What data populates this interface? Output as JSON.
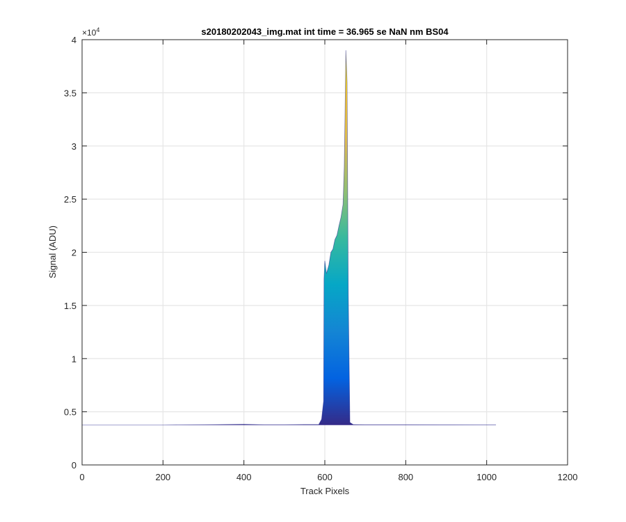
{
  "chart_data": {
    "type": "area",
    "title": "s20180202043_img.mat int time = 36.965 se  NaN nm BS04",
    "xlabel": "Track Pixels",
    "ylabel": "Signal (ADU)",
    "xlim": [
      0,
      1200
    ],
    "ylim": [
      0,
      40000
    ],
    "xticks": [
      0,
      200,
      400,
      600,
      800,
      1000,
      1200
    ],
    "xtick_labels": [
      "0",
      "200",
      "400",
      "600",
      "800",
      "1000",
      "1200"
    ],
    "yticks": [
      0,
      5000,
      10000,
      15000,
      20000,
      25000,
      30000,
      35000,
      40000
    ],
    "ytick_labels": [
      "0",
      "0.5",
      "1",
      "1.5",
      "2",
      "2.5",
      "3",
      "3.5",
      "4"
    ],
    "y_exponent_base": "×10",
    "y_exponent_power": "4",
    "grid": true,
    "colormap": "parula",
    "series": [
      {
        "x": [
          0,
          100,
          200,
          300,
          400,
          450,
          500,
          550,
          585,
          592,
          597,
          598,
          600,
          604,
          610,
          615,
          620,
          625,
          630,
          635,
          640,
          645,
          648,
          650,
          652,
          655,
          658,
          662,
          670,
          700,
          800,
          900,
          1000,
          1023
        ],
        "y": [
          3750,
          3750,
          3750,
          3780,
          3820,
          3780,
          3780,
          3800,
          3800,
          4300,
          6000,
          17500,
          19200,
          18000,
          18800,
          20000,
          20300,
          21200,
          21600,
          22500,
          23300,
          24500,
          28000,
          33000,
          39000,
          36000,
          16000,
          4000,
          3800,
          3780,
          3780,
          3770,
          3760,
          3760
        ]
      }
    ]
  },
  "colors": {
    "baseline": "#2c2c91",
    "grid": "#e6e6e6",
    "axis": "#262626",
    "parula": [
      "#352a87",
      "#0363e1",
      "#1485d4",
      "#06a7c6",
      "#38b99e",
      "#92bf73",
      "#d9ba56",
      "#fcce2e",
      "#f9fb0e"
    ]
  }
}
